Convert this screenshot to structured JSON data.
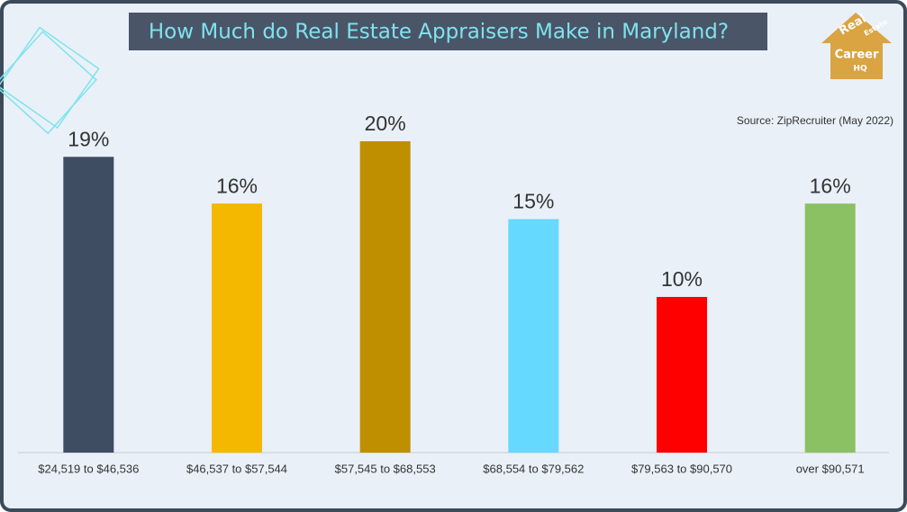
{
  "chart_data": {
    "type": "bar",
    "title": "How Much do Real Estate Appraisers Make in Maryland?",
    "source": "Source: ZipRecruiter (May 2022)",
    "categories": [
      "$24,519 to $46,536",
      "$46,537 to $57,544",
      "$57,545 to $68,553",
      "$68,554 to $79,562",
      "$79,563 to $90,570",
      "over $90,571"
    ],
    "values": [
      19,
      16,
      20,
      15,
      10,
      16
    ],
    "value_labels": [
      "19%",
      "16%",
      "20%",
      "15%",
      "10%",
      "16%"
    ],
    "colors": [
      "#3f4d63",
      "#f5b800",
      "#bf8f00",
      "#66d9ff",
      "#ff0000",
      "#8bc063"
    ]
  },
  "logo": [
    "Real",
    "Estate",
    "Career",
    "HQ"
  ]
}
